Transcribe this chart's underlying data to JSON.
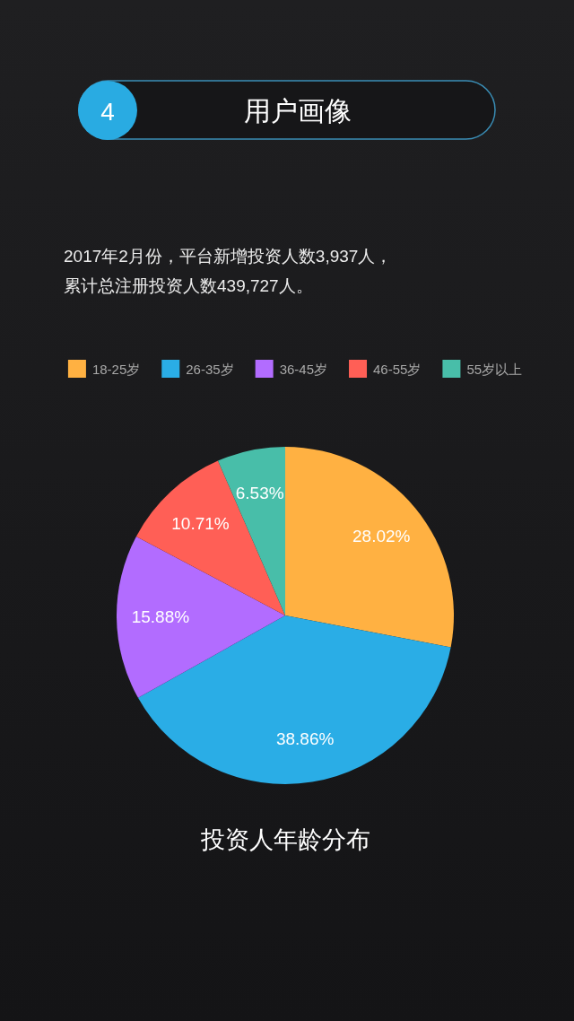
{
  "chart_data": {
    "type": "pie",
    "title": "投资人年龄分布",
    "annotations": [
      "4",
      "用户画像",
      "2017年2月份，平台新增投资人数3,937人，",
      "累计总注册投资人数439,727人。"
    ],
    "categories": [
      "18-25岁",
      "26-35岁",
      "36-45岁",
      "46-55岁",
      "55岁以上"
    ],
    "values": [
      28.02,
      38.86,
      15.88,
      10.71,
      6.53
    ],
    "colors": [
      "#ffb142",
      "#2aade6",
      "#b26cff",
      "#ff5f56",
      "#48bea9"
    ],
    "value_labels": [
      "28.02%",
      "38.86%",
      "15.88%",
      "10.71%",
      "6.53%"
    ],
    "legend": "top"
  }
}
